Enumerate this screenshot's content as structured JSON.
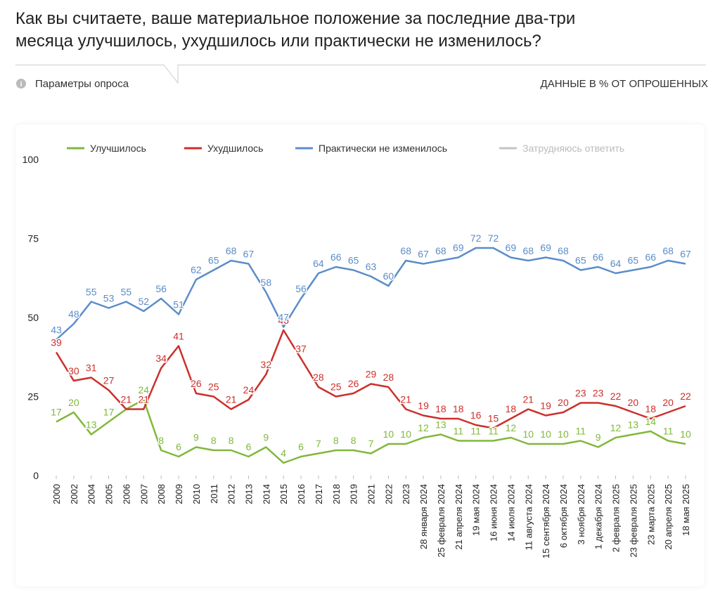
{
  "title": [
    "Как вы считаете, ваше материальное положение за последние два-три",
    "месяца улучшилось, ухудшилось или практически не изменилось?"
  ],
  "survey_params": "Параметры опроса",
  "units_note": "ДАННЫЕ В % ОТ ОПРОШЕННЫХ",
  "chart_data": {
    "type": "line",
    "categories": [
      "2000",
      "2002",
      "2004",
      "2005",
      "2006",
      "2007",
      "2008",
      "2009",
      "2010",
      "2011",
      "2012",
      "2013",
      "2014",
      "2015",
      "2016",
      "2017",
      "2018",
      "2019",
      "2021",
      "2022",
      "2023",
      "28 января 2024",
      "25 февраля 2024",
      "21 апреля 2024",
      "19 мая 2024",
      "16 июня 2024",
      "14 июля 2024",
      "11 августа 2024",
      "15 сентября 2024",
      "6 октября 2024",
      "3 ноября 2024",
      "1 декабря 2024",
      "2 февраля 2025",
      "23 февраля 2025",
      "23 марта 2025",
      "20 апреля 2025",
      "18 мая 2025"
    ],
    "series": [
      {
        "name": "Улучшилось",
        "color": "#80b83a",
        "values": [
          17,
          20,
          13,
          17,
          21,
          24,
          8,
          6,
          9,
          8,
          8,
          6,
          9,
          4,
          6,
          7,
          8,
          8,
          7,
          10,
          10,
          12,
          13,
          11,
          11,
          11,
          12,
          10,
          10,
          10,
          11,
          9,
          12,
          13,
          14,
          11,
          10
        ]
      },
      {
        "name": "Ухудшилось",
        "color": "#cc2f2b",
        "values": [
          39,
          30,
          31,
          27,
          21,
          21,
          34,
          41,
          26,
          25,
          21,
          24,
          32,
          46,
          37,
          28,
          25,
          26,
          29,
          28,
          21,
          19,
          18,
          18,
          16,
          15,
          18,
          21,
          19,
          20,
          23,
          23,
          22,
          20,
          18,
          20,
          22
        ]
      },
      {
        "name": "Практически не изменилось",
        "color": "#5b8dc8",
        "values": [
          43,
          48,
          55,
          53,
          55,
          52,
          56,
          51,
          62,
          65,
          68,
          67,
          58,
          47,
          56,
          64,
          66,
          65,
          63,
          60,
          68,
          67,
          68,
          69,
          72,
          72,
          69,
          68,
          69,
          68,
          65,
          66,
          64,
          65,
          66,
          68,
          67
        ]
      },
      {
        "name": "Затрудняюсь ответить",
        "color": "#c4c4c4",
        "hidden": true
      }
    ],
    "ylim": [
      0,
      100
    ],
    "yticks": [
      0,
      25,
      50,
      75,
      100
    ],
    "grid": false
  }
}
